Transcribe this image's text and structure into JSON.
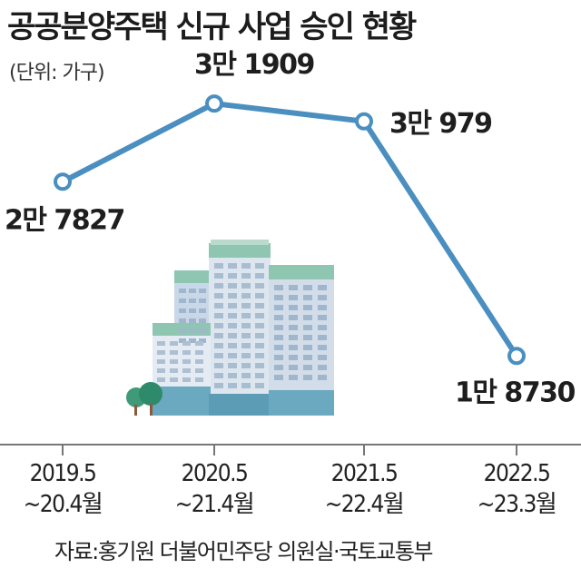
{
  "title": "공공분양주택 신규 사업 승인 현황",
  "unit": "(단위: 가구)",
  "source": "자료:홍기원 더불어민주당 의원실·국토교통부",
  "colors": {
    "line": "#4a8fc0",
    "axis": "#777777",
    "text": "#1e1e1e"
  },
  "chart_data": {
    "type": "line",
    "categories": [
      [
        "2019.5",
        "~20.4월"
      ],
      [
        "2020.5",
        "~21.4월"
      ],
      [
        "2021.5",
        "~22.4월"
      ],
      [
        "2022.5",
        "~23.3월"
      ]
    ],
    "values": [
      27827,
      31909,
      30979,
      18730
    ],
    "data_labels": [
      "2만 7827",
      "3만 1909",
      "3만 979",
      "1만 8730"
    ],
    "ylim": [
      15000,
      34000
    ],
    "grid": false,
    "legend": "none",
    "illustration": "apartment-buildings-icon"
  }
}
